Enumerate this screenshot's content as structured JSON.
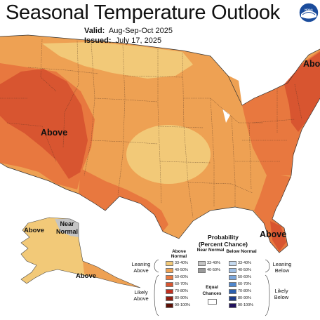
{
  "title": "Seasonal Temperature Outlook",
  "valid_label": "Valid:",
  "valid_value": "Aug-Sep-Oct 2025",
  "issued_label": "Issued:",
  "issued_value": "July 17, 2025",
  "logo_text": "NOAA",
  "map_labels": {
    "above_west": "Above",
    "above_northeast": "Abo",
    "above_southeast": "Above",
    "above_alaska_west": "Above",
    "above_alaska_south": "Above",
    "near_normal_line1": "Near",
    "near_normal_line2": "Normal"
  },
  "legend": {
    "title_line1": "Probability",
    "title_line2": "(Percent Chance)",
    "above_head": "Above Normal",
    "near_head": "Near Normal",
    "below_head": "Below Normal",
    "equal_chances": "Equal Chances",
    "leaning_above": "Leaning Above",
    "likely_above": "Likely Above",
    "leaning_below": "Leaning Below",
    "likely_below": "Likely Below",
    "above_bins": [
      {
        "label": "33-40%",
        "color": "#f2c978"
      },
      {
        "label": "40-50%",
        "color": "#eea153"
      },
      {
        "label": "50-60%",
        "color": "#e8783f"
      },
      {
        "label": "60-70%",
        "color": "#d85530"
      },
      {
        "label": "70-80%",
        "color": "#c03020"
      },
      {
        "label": "80-90%",
        "color": "#8f1d10"
      },
      {
        "label": "90-100%",
        "color": "#5c1006"
      }
    ],
    "near_bins": [
      {
        "label": "33-40%",
        "color": "#c4c4c4"
      },
      {
        "label": "40-50%",
        "color": "#9a9a9a"
      }
    ],
    "below_bins": [
      {
        "label": "33-40%",
        "color": "#c4d9ef"
      },
      {
        "label": "40-50%",
        "color": "#9fc0e6"
      },
      {
        "label": "50-60%",
        "color": "#7aa6dc"
      },
      {
        "label": "60-70%",
        "color": "#4f86cc"
      },
      {
        "label": "70-80%",
        "color": "#2b5fae"
      },
      {
        "label": "80-90%",
        "color": "#1e3d8a"
      },
      {
        "label": "90-100%",
        "color": "#22125e"
      }
    ],
    "equal_chances_color": "#ffffff"
  },
  "colors": {
    "above_33_40": "#f2c978",
    "above_40_50": "#eea153",
    "above_50_60": "#e8783f",
    "above_60_70": "#d85530",
    "near_normal": "#c4c4c4"
  }
}
